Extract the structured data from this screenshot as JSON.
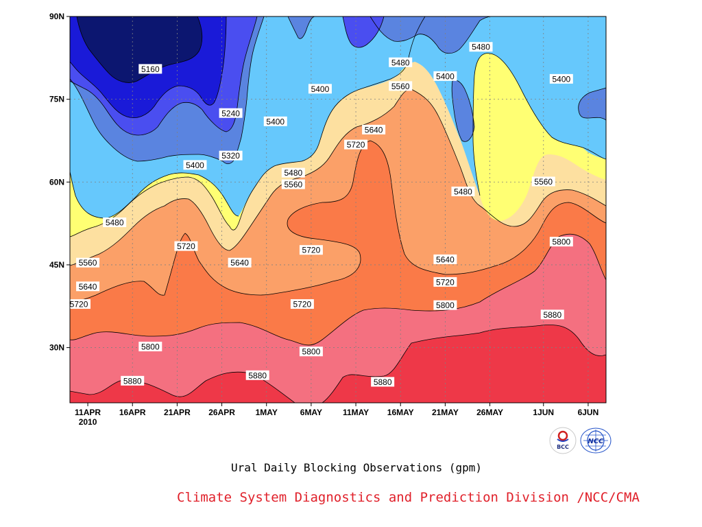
{
  "chart_data": {
    "type": "contour",
    "title": "Ural Daily Blocking Observations (gpm)",
    "x_tick_labels": [
      "11APR",
      "16APR",
      "21APR",
      "26APR",
      "1MAY",
      "6MAY",
      "11MAY",
      "16MAY",
      "21MAY",
      "26MAY",
      "1JUN",
      "6JUN"
    ],
    "x_year_label": "2010",
    "y_tick_labels": [
      "30N",
      "45N",
      "60N",
      "75N",
      "90N"
    ],
    "x_range": [
      "2010-04-09",
      "2010-06-08"
    ],
    "y_range": [
      20,
      90
    ],
    "grid": "dotted",
    "levels": [
      5160,
      5240,
      5320,
      5400,
      5480,
      5560,
      5640,
      5720,
      5800,
      5880
    ],
    "fill_colors": [
      "#0c1670",
      "#1a1ad8",
      "#4a4ef0",
      "#5a84e0",
      "#66c8fc",
      "#ffff73",
      "#fde0a0",
      "#fba068",
      "#fa7a48",
      "#f47080",
      "#ee3848"
    ],
    "contour_labels": [
      {
        "text": "5160",
        "date": "2010-04-18",
        "lat": 80.5
      },
      {
        "text": "5240",
        "date": "2010-04-27",
        "lat": 72.5
      },
      {
        "text": "5320",
        "date": "2010-04-27",
        "lat": 64.8
      },
      {
        "text": "5400",
        "date": "2010-04-23",
        "lat": 63.1
      },
      {
        "text": "5400",
        "date": "2010-05-02",
        "lat": 71.0
      },
      {
        "text": "5400",
        "date": "2010-05-07",
        "lat": 76.9
      },
      {
        "text": "5400",
        "date": "2010-05-21",
        "lat": 79.2
      },
      {
        "text": "5400",
        "date": "2010-06-03",
        "lat": 78.7
      },
      {
        "text": "5480",
        "date": "2010-04-14",
        "lat": 52.7
      },
      {
        "text": "5480",
        "date": "2010-05-04",
        "lat": 61.7
      },
      {
        "text": "5480",
        "date": "2010-05-16",
        "lat": 81.7
      },
      {
        "text": "5480",
        "date": "2010-05-25",
        "lat": 84.5
      },
      {
        "text": "5480",
        "date": "2010-05-23",
        "lat": 58.3
      },
      {
        "text": "5560",
        "date": "2010-04-11",
        "lat": 45.4
      },
      {
        "text": "5560",
        "date": "2010-05-04",
        "lat": 59.6
      },
      {
        "text": "5560",
        "date": "2010-05-16",
        "lat": 77.4
      },
      {
        "text": "5560",
        "date": "2010-06-01",
        "lat": 60.1
      },
      {
        "text": "5640",
        "date": "2010-04-11",
        "lat": 41.1
      },
      {
        "text": "5640",
        "date": "2010-04-28",
        "lat": 45.4
      },
      {
        "text": "5640",
        "date": "2010-05-13",
        "lat": 69.5
      },
      {
        "text": "5640",
        "date": "2010-05-21",
        "lat": 46.0
      },
      {
        "text": "5720",
        "date": "2010-04-10",
        "lat": 37.9
      },
      {
        "text": "5720",
        "date": "2010-04-22",
        "lat": 48.4
      },
      {
        "text": "5720",
        "date": "2010-05-06",
        "lat": 47.7
      },
      {
        "text": "5720",
        "date": "2010-05-05",
        "lat": 37.9
      },
      {
        "text": "5720",
        "date": "2010-05-11",
        "lat": 66.8
      },
      {
        "text": "5720",
        "date": "2010-05-21",
        "lat": 41.9
      },
      {
        "text": "5800",
        "date": "2010-04-18",
        "lat": 30.2
      },
      {
        "text": "5800",
        "date": "2010-05-06",
        "lat": 29.3
      },
      {
        "text": "5800",
        "date": "2010-05-21",
        "lat": 37.7
      },
      {
        "text": "5800",
        "date": "2010-06-03",
        "lat": 49.2
      },
      {
        "text": "5880",
        "date": "2010-04-16",
        "lat": 24.0
      },
      {
        "text": "5880",
        "date": "2010-04-30",
        "lat": 25.0
      },
      {
        "text": "5880",
        "date": "2010-05-14",
        "lat": 23.8
      },
      {
        "text": "5880",
        "date": "2010-06-02",
        "lat": 36.0
      }
    ]
  },
  "caption": "Ural Daily Blocking Observations (gpm)",
  "credit": "Climate System Diagnostics and Prediction Division /NCC/CMA",
  "logos": {
    "left_text": "BCC",
    "right_text": "NCC"
  }
}
